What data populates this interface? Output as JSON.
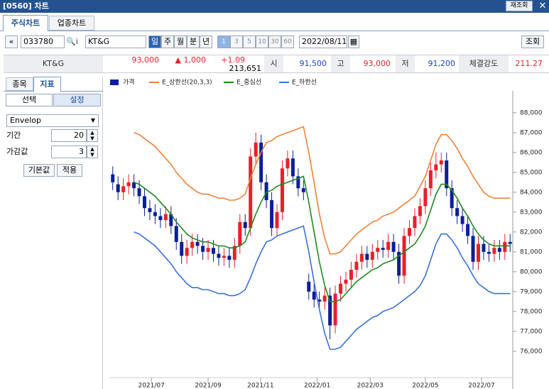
{
  "window": {
    "title": "[0560] 차트",
    "reinquiry": "재조회",
    "close": "✕"
  },
  "tabs": [
    "주식차트",
    "업종차트"
  ],
  "toolbar": {
    "code": "033780",
    "name": "KT&G",
    "periods": [
      "일",
      "주",
      "월",
      "분",
      "년"
    ],
    "multipliers": [
      "1",
      "3",
      "5",
      "10",
      "30",
      "60"
    ],
    "date": "2022/08/11",
    "search": "조회"
  },
  "quote": {
    "name": "KT&G",
    "price": "93,000",
    "change": "▲ 1,000",
    "rate": "+1.09",
    "volume": "213,651",
    "open_label": "시",
    "open": "91,500",
    "high_label": "고",
    "high": "93,000",
    "low_label": "저",
    "low": "91,200",
    "strength_label": "체결강도",
    "strength": "211.27"
  },
  "side": {
    "tabs": [
      "종목",
      "지표"
    ],
    "subtabs": [
      "선택",
      "설정"
    ],
    "indicator": "Envelop",
    "fields": [
      {
        "label": "기간",
        "value": "20"
      },
      {
        "label": "가감값",
        "value": "3"
      }
    ],
    "buttons": [
      "기본값",
      "적용"
    ]
  },
  "chart_data": {
    "type": "candlestick",
    "up_color": "#e8202a",
    "down_color": "#0c1f96",
    "xlim": [
      0,
      76
    ],
    "xticks": [
      {
        "value": 7.8,
        "label": "2021/07"
      },
      {
        "value": 18.5,
        "label": "2021/09"
      },
      {
        "value": 28.4,
        "label": "2021/11"
      },
      {
        "value": 39.1,
        "label": "2022/01"
      },
      {
        "value": 49.1,
        "label": "2022/03"
      },
      {
        "value": 59.5,
        "label": "2022/05"
      },
      {
        "value": 70.1,
        "label": "2022/07"
      }
    ],
    "ylim": [
      74100,
      89100
    ],
    "yticks": [
      {
        "value": 76000,
        "label": "76,000"
      },
      {
        "value": 77000,
        "label": "77,000"
      },
      {
        "value": 78000,
        "label": "78,000"
      },
      {
        "value": 79000,
        "label": "79,000"
      },
      {
        "value": 80000,
        "label": "80,000"
      },
      {
        "value": 81000,
        "label": "81,000"
      },
      {
        "value": 82000,
        "label": "82,000"
      },
      {
        "value": 83000,
        "label": "83,000"
      },
      {
        "value": 84000,
        "label": "84,000"
      },
      {
        "value": 85000,
        "label": "85,000"
      },
      {
        "value": 86000,
        "label": "86,000"
      },
      {
        "value": 87000,
        "label": "87,000"
      },
      {
        "value": 88000,
        "label": "88,000"
      }
    ],
    "grid": false,
    "series": [
      {
        "name": "가격",
        "color": "#0c1f96",
        "open": [
          84900,
          84400,
          84000,
          84300,
          84500,
          84200,
          83800,
          83200,
          83000,
          82800,
          82600,
          82900,
          82300,
          81500,
          80800,
          81200,
          81500,
          81300,
          81000,
          81200,
          80900,
          80700,
          80800,
          80600,
          81300,
          82500,
          82200,
          85800,
          86500,
          84500,
          83600,
          82200,
          83000,
          85200,
          85700,
          84800,
          84200,
          79500,
          79000,
          78600,
          78500,
          78800,
          77300,
          78900,
          79400,
          79600,
          80100,
          80500,
          80900,
          80600,
          81000,
          81200,
          81100,
          81500,
          81000,
          79800,
          81800,
          82200,
          82800,
          83300,
          84200,
          85100,
          85400,
          85600,
          84200,
          83200,
          82800,
          82400,
          81800,
          80500,
          81400,
          81000,
          80900,
          81200,
          81000,
          81500
        ],
        "high": [
          85300,
          84800,
          84700,
          84900,
          84900,
          84600,
          84200,
          83600,
          83400,
          83200,
          83300,
          83300,
          82700,
          81900,
          81600,
          81900,
          81900,
          81700,
          81600,
          81600,
          81300,
          81200,
          81200,
          81700,
          82900,
          82900,
          86200,
          87000,
          86900,
          84900,
          84000,
          83400,
          85600,
          86100,
          86100,
          85200,
          84600,
          79900,
          79400,
          79000,
          79200,
          79200,
          79300,
          79800,
          80000,
          80500,
          80900,
          81300,
          81300,
          81400,
          81600,
          81600,
          81900,
          81900,
          81400,
          82200,
          82600,
          83200,
          83700,
          84600,
          85500,
          86000,
          86000,
          86000,
          84600,
          83600,
          83200,
          82800,
          82200,
          81800,
          81800,
          81400,
          81600,
          81600,
          81900,
          81900
        ],
        "low": [
          84100,
          83600,
          83600,
          83900,
          83800,
          83400,
          82800,
          82600,
          82400,
          82200,
          82200,
          81900,
          81100,
          80400,
          80400,
          80800,
          80900,
          80600,
          80600,
          80500,
          80300,
          80300,
          80200,
          80200,
          80900,
          81800,
          81800,
          85400,
          84100,
          83200,
          81800,
          81800,
          82600,
          84800,
          84400,
          83800,
          83600,
          78600,
          78200,
          78100,
          78100,
          76600,
          76900,
          78500,
          79000,
          79200,
          79700,
          80100,
          80200,
          80200,
          80600,
          80700,
          80700,
          80600,
          79400,
          79400,
          81400,
          81800,
          82400,
          82900,
          83800,
          84700,
          85000,
          83800,
          82800,
          82400,
          82000,
          81400,
          80100,
          80100,
          80600,
          80500,
          80500,
          80600,
          80600,
          81000
        ],
        "close": [
          84500,
          84000,
          84300,
          84500,
          84200,
          83800,
          83200,
          83000,
          82800,
          82600,
          82900,
          82300,
          81500,
          80800,
          81200,
          81500,
          81300,
          81000,
          81200,
          80900,
          80700,
          80800,
          80600,
          81300,
          82500,
          82200,
          85800,
          86500,
          84500,
          83600,
          82200,
          83000,
          85200,
          85700,
          84800,
          84200,
          84000,
          79000,
          78600,
          78500,
          78800,
          77300,
          78900,
          79400,
          79600,
          80100,
          80500,
          80900,
          80600,
          81000,
          81200,
          81100,
          81500,
          81000,
          79800,
          81800,
          82200,
          82800,
          83300,
          84200,
          85100,
          85400,
          85600,
          84200,
          83200,
          82800,
          82400,
          81800,
          80500,
          81400,
          81000,
          80900,
          81200,
          81000,
          81500,
          81400
        ]
      },
      {
        "name": "E_상한선(20,3,3)",
        "color": "#f0813a",
        "values": [
          null,
          null,
          null,
          null,
          87000,
          86900,
          86700,
          86500,
          86300,
          86000,
          85700,
          85400,
          85000,
          84700,
          84400,
          84200,
          84000,
          83900,
          83900,
          83800,
          83700,
          83700,
          83600,
          83600,
          83700,
          83900,
          84700,
          85400,
          86000,
          86500,
          86600,
          86800,
          86900,
          87000,
          87100,
          87200,
          87300,
          86000,
          84500,
          82900,
          81700,
          80900,
          80900,
          81000,
          81300,
          81600,
          81900,
          82100,
          82300,
          82500,
          82600,
          82800,
          82900,
          83000,
          83200,
          83400,
          83600,
          83800,
          84300,
          84800,
          85600,
          86400,
          86900,
          86900,
          86600,
          86200,
          85700,
          85300,
          84800,
          84400,
          84000,
          83800,
          83700,
          83700,
          83700,
          83700
        ]
      },
      {
        "name": "E_중심선",
        "color": "#1e8a1e",
        "values": [
          null,
          null,
          null,
          null,
          84500,
          84400,
          84200,
          84000,
          83800,
          83500,
          83200,
          82900,
          82500,
          82200,
          81900,
          81700,
          81600,
          81500,
          81500,
          81400,
          81300,
          81300,
          81200,
          81200,
          81300,
          81500,
          82200,
          82900,
          83500,
          84000,
          84100,
          84300,
          84400,
          84500,
          84600,
          84700,
          84800,
          83500,
          82000,
          80500,
          79300,
          78500,
          78500,
          78600,
          78900,
          79200,
          79500,
          79700,
          79900,
          80100,
          80200,
          80400,
          80500,
          80600,
          80800,
          81000,
          81200,
          81400,
          81800,
          82300,
          83100,
          83900,
          84400,
          84400,
          84100,
          83700,
          83200,
          82800,
          82300,
          81900,
          81600,
          81400,
          81300,
          81300,
          81300,
          81300
        ]
      },
      {
        "name": "E_하한선",
        "color": "#3a6fe0",
        "values": [
          null,
          null,
          null,
          null,
          82000,
          81900,
          81700,
          81500,
          81300,
          81000,
          80700,
          80400,
          80000,
          79700,
          79400,
          79200,
          79200,
          79100,
          79100,
          79000,
          78900,
          78900,
          78800,
          78800,
          78900,
          79100,
          79700,
          80400,
          81000,
          81500,
          81600,
          81800,
          81900,
          82000,
          82100,
          82200,
          82300,
          81000,
          79500,
          78100,
          76900,
          76100,
          76100,
          76200,
          76500,
          76800,
          77100,
          77300,
          77500,
          77700,
          77800,
          78000,
          78100,
          78200,
          78400,
          78600,
          78800,
          79000,
          79300,
          79800,
          80600,
          81400,
          81900,
          81900,
          81600,
          81200,
          80700,
          80300,
          79800,
          79400,
          79200,
          79000,
          78900,
          78900,
          78900,
          78900
        ]
      }
    ]
  }
}
